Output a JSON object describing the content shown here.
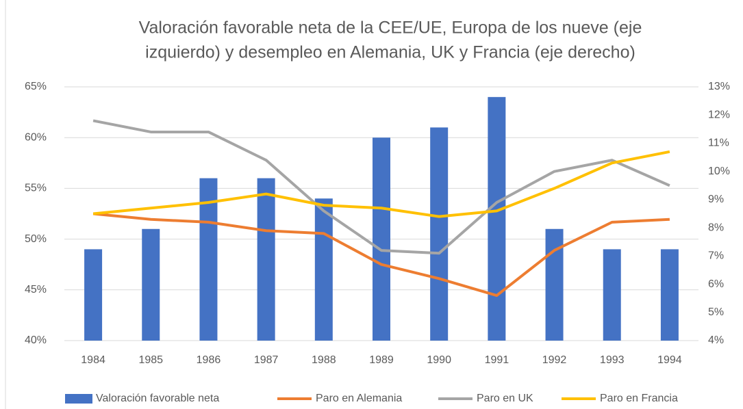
{
  "chart_data": {
    "type": "bar",
    "title": [
      "Valoración favorable neta  de la CEE/UE, Europa de los nueve (eje",
      "izquierdo)  y desempleo en Alemania, UK y Francia (eje derecho)"
    ],
    "categories": [
      "1984",
      "1985",
      "1986",
      "1987",
      "1988",
      "1989",
      "1990",
      "1991",
      "1992",
      "1993",
      "1994"
    ],
    "series": [
      {
        "name": "Valoración favorable neta",
        "type": "bar",
        "color": "#4472c4",
        "values": [
          49,
          51,
          56,
          56,
          54,
          60,
          61,
          64,
          51,
          49,
          49
        ]
      },
      {
        "name": "Paro en Alemania",
        "type": "line",
        "axis": "y2",
        "color": "#ed7d31",
        "values": [
          8.5,
          8.3,
          8.2,
          7.9,
          7.8,
          6.7,
          6.2,
          5.6,
          7.2,
          8.2,
          8.3
        ]
      },
      {
        "name": "Paro en UK",
        "type": "line",
        "axis": "y2",
        "color": "#a5a5a5",
        "values": [
          11.8,
          11.4,
          11.4,
          10.4,
          8.6,
          7.2,
          7.1,
          8.9,
          10.0,
          10.4,
          9.5
        ]
      },
      {
        "name": "Paro en Francia",
        "type": "line",
        "axis": "y2",
        "color": "#ffc000",
        "values": [
          8.5,
          8.7,
          8.9,
          9.2,
          8.8,
          8.7,
          8.4,
          8.6,
          9.4,
          10.3,
          10.7
        ]
      }
    ],
    "ylim": [
      40,
      65
    ],
    "yticks": [
      {
        "value": 40,
        "label": "40%"
      },
      {
        "value": 45,
        "label": "45%"
      },
      {
        "value": 50,
        "label": "50%"
      },
      {
        "value": 55,
        "label": "55%"
      },
      {
        "value": 60,
        "label": "60%"
      },
      {
        "value": 65,
        "label": "65%"
      }
    ],
    "y2lim": [
      4,
      13
    ],
    "y2ticks": [
      {
        "value": 4,
        "label": "4%"
      },
      {
        "value": 5,
        "label": "5%"
      },
      {
        "value": 6,
        "label": "6%"
      },
      {
        "value": 7,
        "label": "7%"
      },
      {
        "value": 8,
        "label": "8%"
      },
      {
        "value": 9,
        "label": "9%"
      },
      {
        "value": 10,
        "label": "10%"
      },
      {
        "value": 11,
        "label": "11%"
      },
      {
        "value": 12,
        "label": "12%"
      },
      {
        "value": 13,
        "label": "13%"
      }
    ],
    "grid": true,
    "legend": "bottom"
  }
}
